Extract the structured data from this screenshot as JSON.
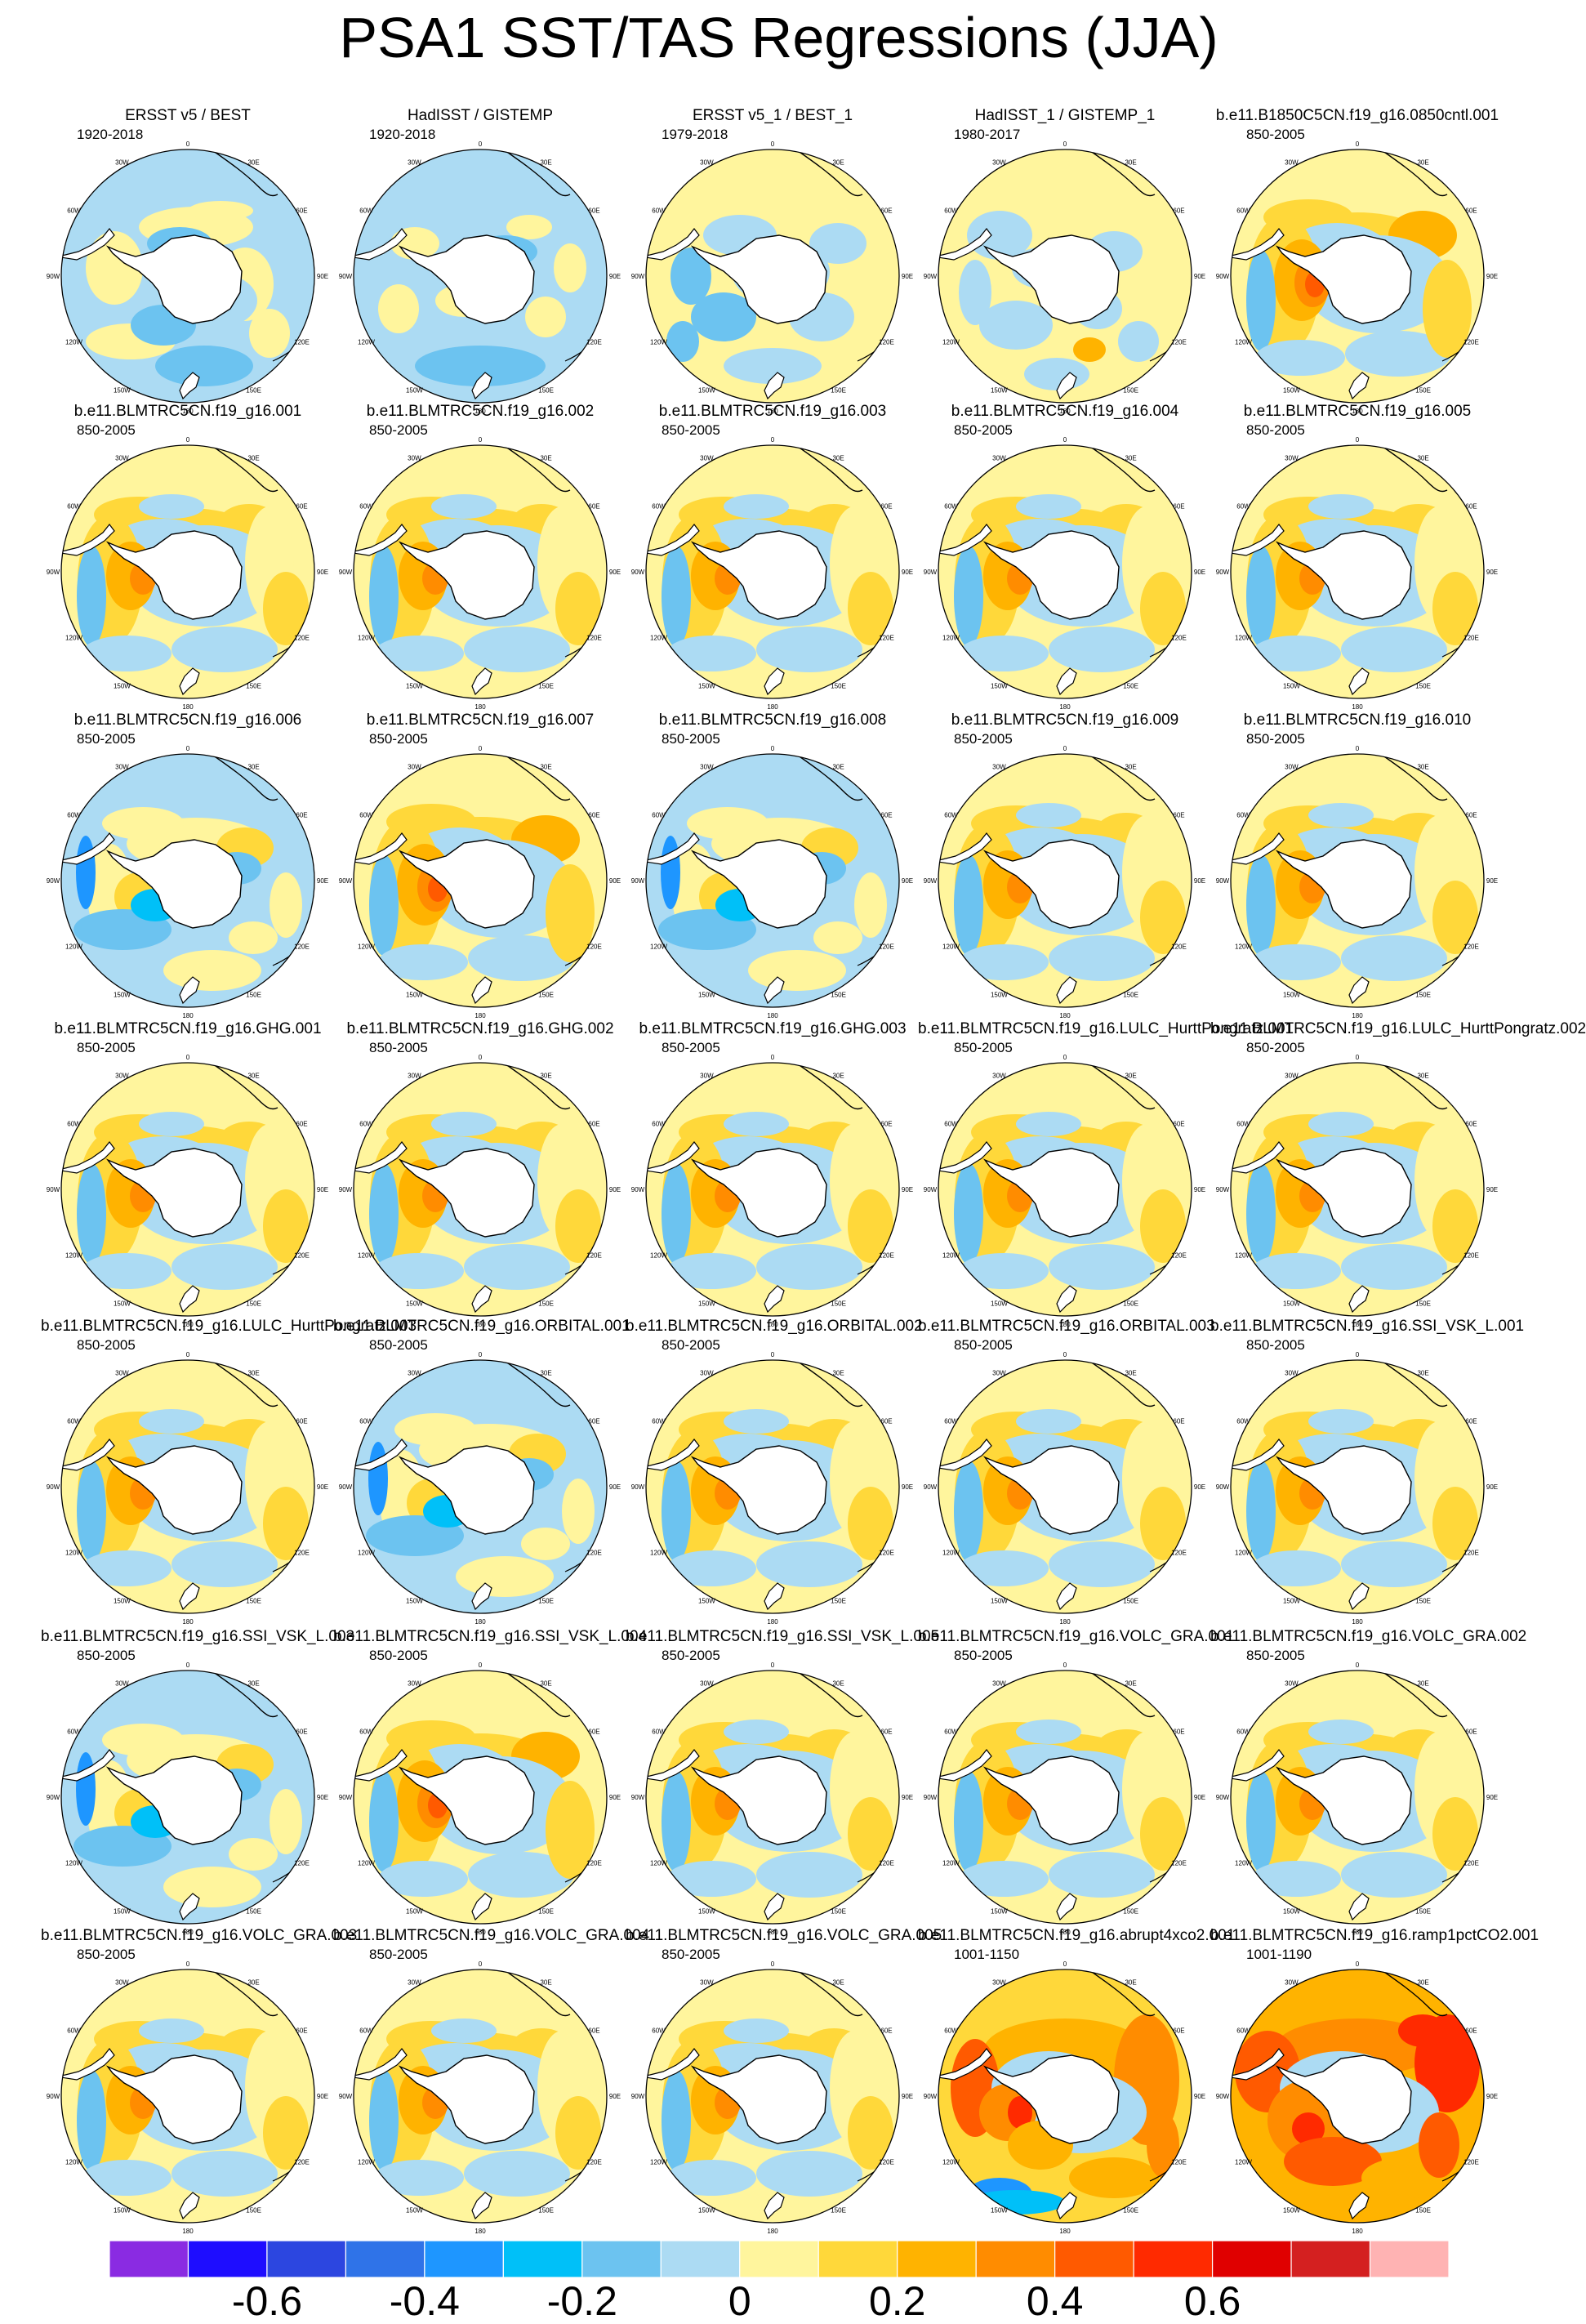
{
  "title": "PSA1 SST/TAS Regressions (JJA)",
  "colors": {
    "bins": [
      "#8a2be2",
      "#1e0dff",
      "#2c46e0",
      "#2f73e8",
      "#1e96ff",
      "#00c0f8",
      "#6cc3f0",
      "#acdbf3",
      "#fff59d",
      "#ffd83a",
      "#ffb300",
      "#ff8c00",
      "#ff5a00",
      "#ff2a00",
      "#e00000",
      "#d42020",
      "#ffb3b3"
    ],
    "land": "#ffffff",
    "coast": "#000000"
  },
  "colorbar": {
    "tick_labels": [
      "-0.6",
      "-0.4",
      "-0.2",
      "0",
      "0.2",
      "0.4",
      "0.6"
    ],
    "tick_values": [
      -0.6,
      -0.4,
      -0.2,
      0,
      0.2,
      0.4,
      0.6
    ]
  },
  "map_labels": {
    "top": "0",
    "top_right": "30E",
    "right_upper": "60E",
    "right": "90E",
    "right_lower": "120E",
    "bottom_right": "150E",
    "bottom": "180",
    "bottom_left": "150W",
    "left_lower": "120W",
    "left": "90W",
    "left_upper": "60W",
    "top_left": "30W"
  },
  "panels": [
    {
      "title": "ERSST v5 / BEST",
      "period": "1920-2018",
      "scheme": "obs1"
    },
    {
      "title": "HadISST / GISTEMP",
      "period": "1920-2018",
      "scheme": "obs2"
    },
    {
      "title": "ERSST v5_1 / BEST_1",
      "period": "1979-2018",
      "scheme": "obs3"
    },
    {
      "title": "HadISST_1 / GISTEMP_1",
      "period": "1980-2017",
      "scheme": "obs4"
    },
    {
      "title": "b.e11.B1850C5CN.f19_g16.0850cntl.001",
      "period": "850-2005",
      "scheme": "strong"
    },
    {
      "title": "b.e11.BLMTRC5CN.f19_g16.001",
      "period": "850-2005",
      "scheme": "std"
    },
    {
      "title": "b.e11.BLMTRC5CN.f19_g16.002",
      "period": "850-2005",
      "scheme": "std"
    },
    {
      "title": "b.e11.BLMTRC5CN.f19_g16.003",
      "period": "850-2005",
      "scheme": "std"
    },
    {
      "title": "b.e11.BLMTRC5CN.f19_g16.004",
      "period": "850-2005",
      "scheme": "std"
    },
    {
      "title": "b.e11.BLMTRC5CN.f19_g16.005",
      "period": "850-2005",
      "scheme": "std"
    },
    {
      "title": "b.e11.BLMTRC5CN.f19_g16.006",
      "period": "850-2005",
      "scheme": "weak"
    },
    {
      "title": "b.e11.BLMTRC5CN.f19_g16.007",
      "period": "850-2005",
      "scheme": "strong"
    },
    {
      "title": "b.e11.BLMTRC5CN.f19_g16.008",
      "period": "850-2005",
      "scheme": "weak"
    },
    {
      "title": "b.e11.BLMTRC5CN.f19_g16.009",
      "period": "850-2005",
      "scheme": "std"
    },
    {
      "title": "b.e11.BLMTRC5CN.f19_g16.010",
      "period": "850-2005",
      "scheme": "std"
    },
    {
      "title": "b.e11.BLMTRC5CN.f19_g16.GHG.001",
      "period": "850-2005",
      "scheme": "std"
    },
    {
      "title": "b.e11.BLMTRC5CN.f19_g16.GHG.002",
      "period": "850-2005",
      "scheme": "std"
    },
    {
      "title": "b.e11.BLMTRC5CN.f19_g16.GHG.003",
      "period": "850-2005",
      "scheme": "std"
    },
    {
      "title": "b.e11.BLMTRC5CN.f19_g16.LULC_HurttPongratz.001",
      "period": "850-2005",
      "scheme": "std"
    },
    {
      "title": "b.e11.BLMTRC5CN.f19_g16.LULC_HurttPongratz.002",
      "period": "850-2005",
      "scheme": "std"
    },
    {
      "title": "b.e11.BLMTRC5CN.f19_g16.LULC_HurttPongratz.003",
      "period": "850-2005",
      "scheme": "std"
    },
    {
      "title": "b.e11.BLMTRC5CN.f19_g16.ORBITAL.001",
      "period": "850-2005",
      "scheme": "weak"
    },
    {
      "title": "b.e11.BLMTRC5CN.f19_g16.ORBITAL.002",
      "period": "850-2005",
      "scheme": "std"
    },
    {
      "title": "b.e11.BLMTRC5CN.f19_g16.ORBITAL.003",
      "period": "850-2005",
      "scheme": "std"
    },
    {
      "title": "b.e11.BLMTRC5CN.f19_g16.SSI_VSK_L.001",
      "period": "850-2005",
      "scheme": "std"
    },
    {
      "title": "b.e11.BLMTRC5CN.f19_g16.SSI_VSK_L.003",
      "period": "850-2005",
      "scheme": "weak"
    },
    {
      "title": "b.e11.BLMTRC5CN.f19_g16.SSI_VSK_L.004",
      "period": "850-2005",
      "scheme": "strong"
    },
    {
      "title": "b.e11.BLMTRC5CN.f19_g16.SSI_VSK_L.005",
      "period": "850-2005",
      "scheme": "std"
    },
    {
      "title": "b.e11.BLMTRC5CN.f19_g16.VOLC_GRA.001",
      "period": "850-2005",
      "scheme": "std"
    },
    {
      "title": "b.e11.BLMTRC5CN.f19_g16.VOLC_GRA.002",
      "period": "850-2005",
      "scheme": "std"
    },
    {
      "title": "b.e11.BLMTRC5CN.f19_g16.VOLC_GRA.003",
      "period": "850-2005",
      "scheme": "std"
    },
    {
      "title": "b.e11.BLMTRC5CN.f19_g16.VOLC_GRA.004",
      "period": "850-2005",
      "scheme": "std"
    },
    {
      "title": "b.e11.BLMTRC5CN.f19_g16.VOLC_GRA.005",
      "period": "850-2005",
      "scheme": "std"
    },
    {
      "title": "b.e11.BLMTRC5CN.f19_g16.abrupt4xco2.001",
      "period": "1001-1150",
      "scheme": "warm"
    },
    {
      "title": "b.e11.BLMTRC5CN.f19_g16.ramp1pctCO2.001",
      "period": "1001-1190",
      "scheme": "hot"
    }
  ]
}
